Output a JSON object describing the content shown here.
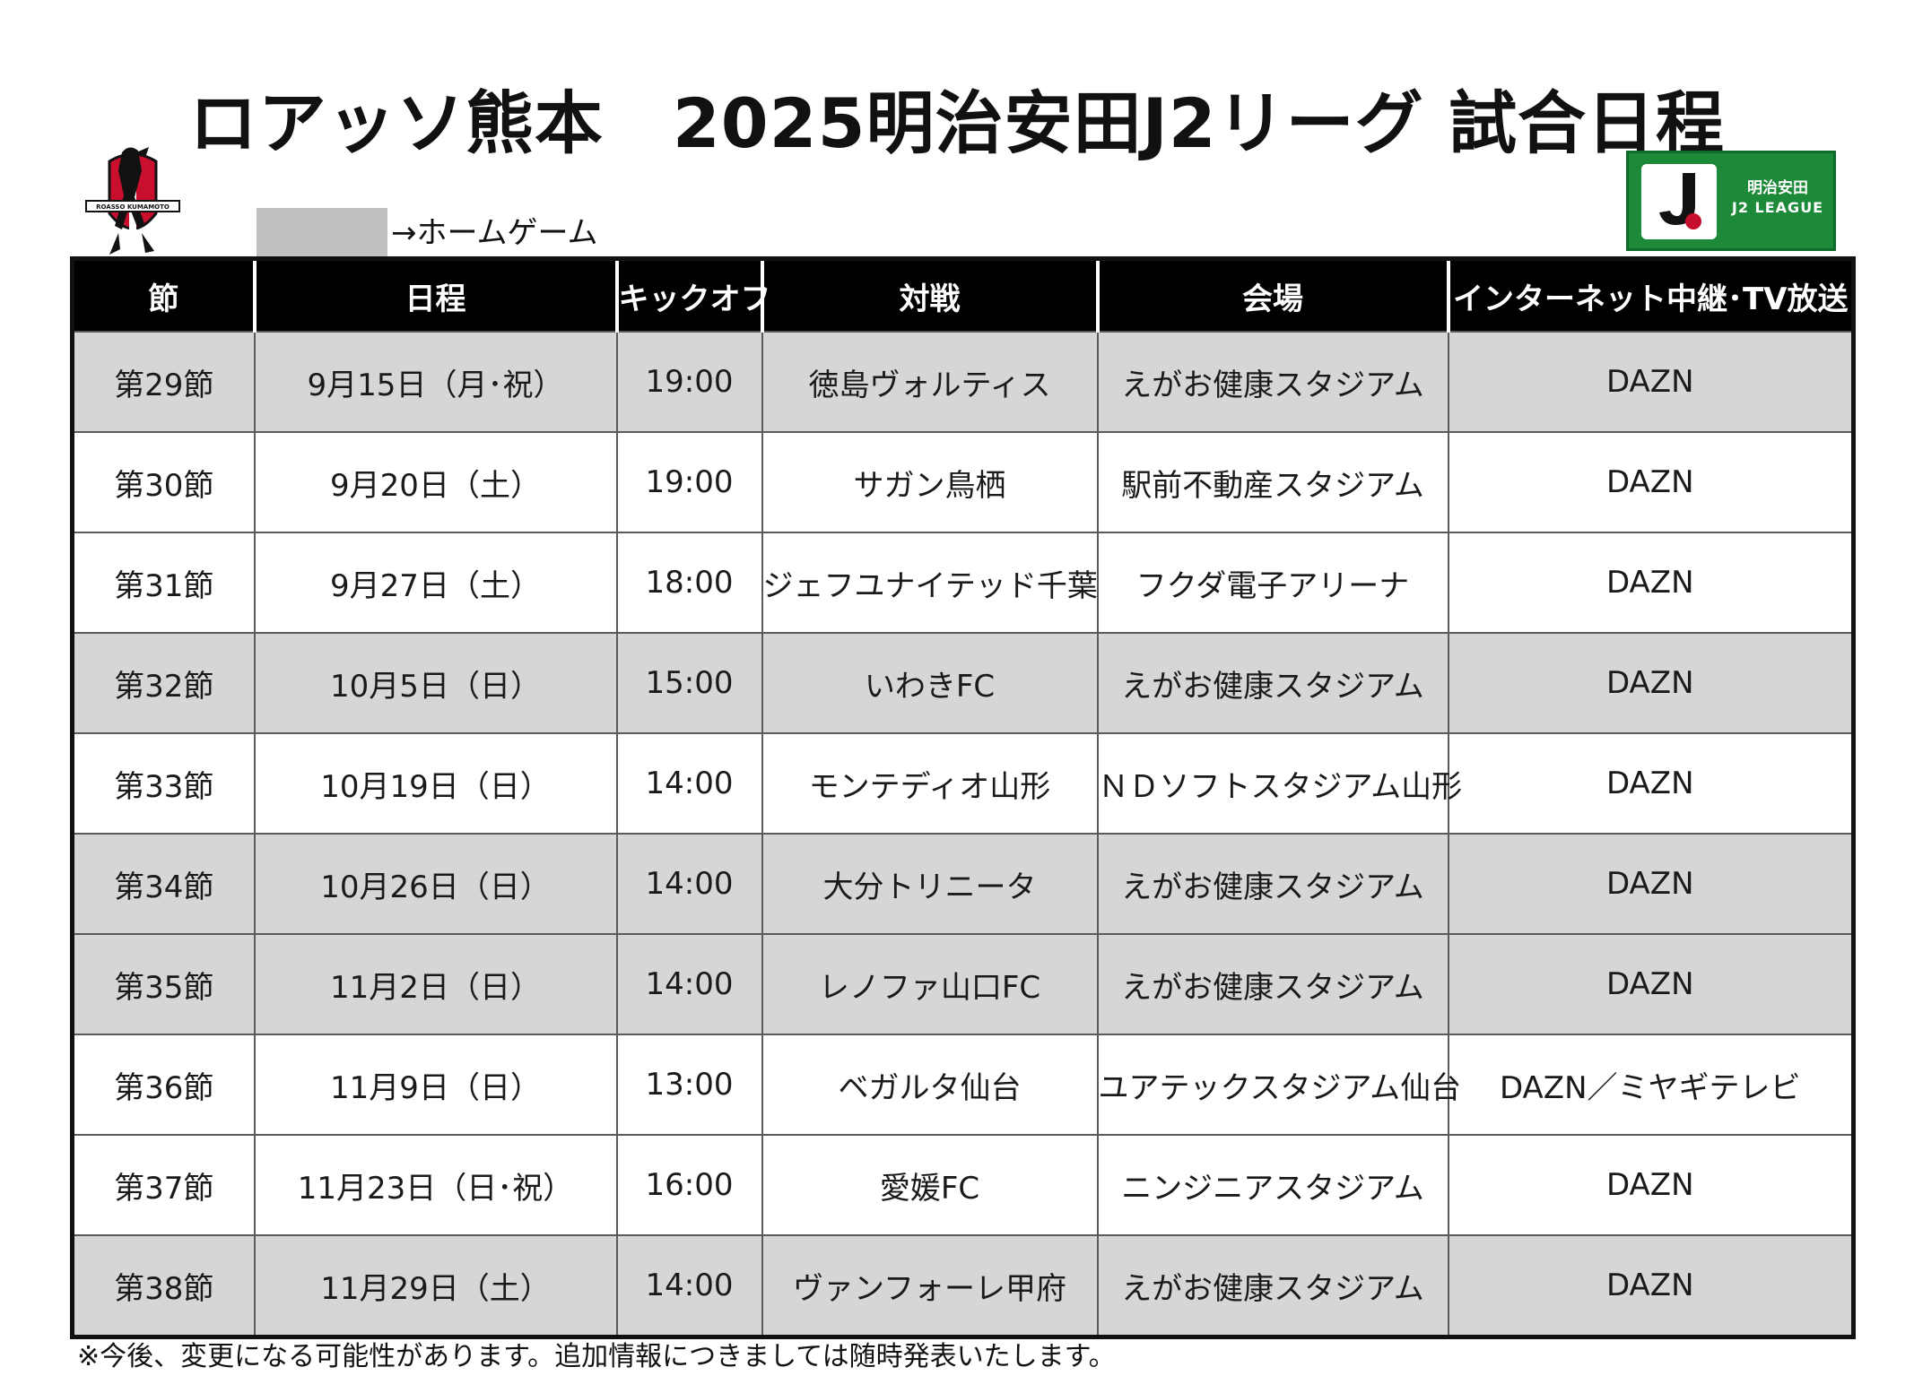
{
  "title": "ロアッソ熊本　2025明治安田J2リーグ 試合日程",
  "jleague_logo": {
    "line1": "明治安田",
    "line2": "J2 LEAGUE",
    "color": "#1d8a3a"
  },
  "club_logo": {
    "text": "ROASSO KUMAMOTO"
  },
  "legend": {
    "label": "→ホームゲーム",
    "swatch_color": "#c0c0c0"
  },
  "table": {
    "headers": [
      "節",
      "日程",
      "キックオフ",
      "対戦",
      "会場",
      "インターネット中継･TV放送"
    ],
    "rows": [
      {
        "home": true,
        "cells": [
          "第29節",
          "9月15日（月･祝）",
          "19:00",
          "徳島ヴォルティス",
          "えがお健康スタジアム",
          "DAZN"
        ]
      },
      {
        "home": false,
        "cells": [
          "第30節",
          "9月20日（土）",
          "19:00",
          "サガン鳥栖",
          "駅前不動産スタジアム",
          "DAZN"
        ]
      },
      {
        "home": false,
        "cells": [
          "第31節",
          "9月27日（土）",
          "18:00",
          "ジェフユナイテッド千葉",
          "フクダ電子アリーナ",
          "DAZN"
        ]
      },
      {
        "home": true,
        "cells": [
          "第32節",
          "10月5日（日）",
          "15:00",
          "いわきFC",
          "えがお健康スタジアム",
          "DAZN"
        ]
      },
      {
        "home": false,
        "cells": [
          "第33節",
          "10月19日（日）",
          "14:00",
          "モンテディオ山形",
          "ＮＤソフトスタジアム山形",
          "DAZN"
        ]
      },
      {
        "home": true,
        "cells": [
          "第34節",
          "10月26日（日）",
          "14:00",
          "大分トリニータ",
          "えがお健康スタジアム",
          "DAZN"
        ]
      },
      {
        "home": true,
        "cells": [
          "第35節",
          "11月2日（日）",
          "14:00",
          "レノファ山口FC",
          "えがお健康スタジアム",
          "DAZN"
        ]
      },
      {
        "home": false,
        "cells": [
          "第36節",
          "11月9日（日）",
          "13:00",
          "ベガルタ仙台",
          "ユアテックスタジアム仙台",
          "DAZN／ミヤギテレビ"
        ]
      },
      {
        "home": false,
        "cells": [
          "第37節",
          "11月23日（日･祝）",
          "16:00",
          "愛媛FC",
          "ニンジニアスタジアム",
          "DAZN"
        ]
      },
      {
        "home": true,
        "cells": [
          "第38節",
          "11月29日（土）",
          "14:00",
          "ヴァンフォーレ甲府",
          "えがお健康スタジアム",
          "DAZN"
        ]
      }
    ]
  },
  "footnote": "※今後、変更になる可能性があります。追加情報につきましては随時発表いたします。",
  "colors": {
    "home_row": "#d6d6d6",
    "away_row": "#ffffff",
    "header_bg": "#000000"
  }
}
